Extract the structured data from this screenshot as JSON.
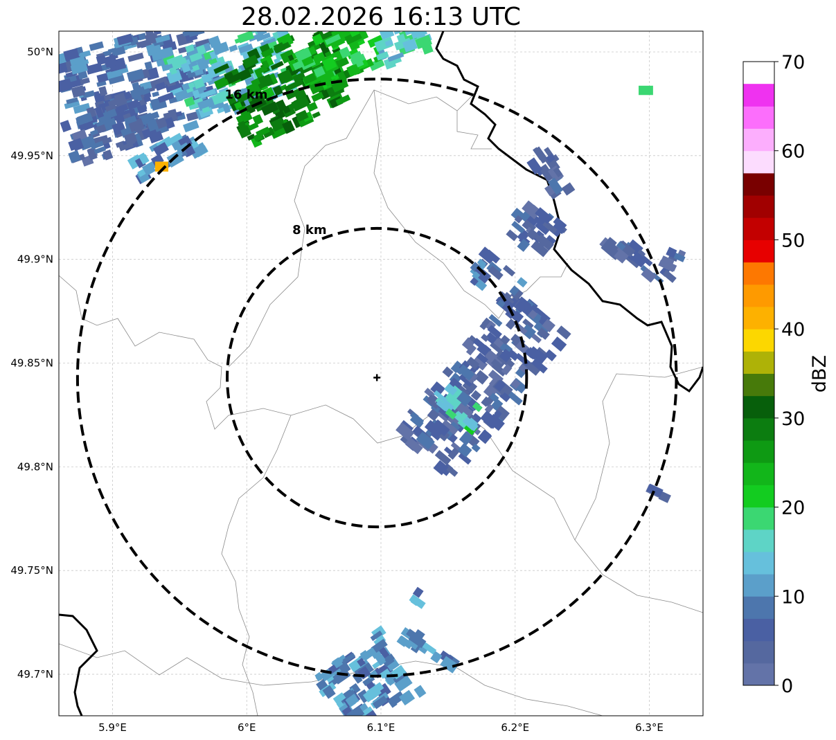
{
  "title": "28.02.2026 16:13 UTC",
  "map": {
    "lon_range": [
      5.86,
      6.34
    ],
    "lat_range": [
      49.68,
      50.01
    ],
    "radar_center": {
      "lon": 6.097,
      "lat": 49.843
    },
    "rings": [
      {
        "label": "8 km",
        "radius_km": 8
      },
      {
        "label": "16 km",
        "radius_km": 16
      }
    ],
    "lon_ticks": [
      {
        "value": 5.9,
        "label": "5.9°E"
      },
      {
        "value": 6.0,
        "label": "6°E"
      },
      {
        "value": 6.1,
        "label": "6.1°E"
      },
      {
        "value": 6.2,
        "label": "6.2°E"
      },
      {
        "value": 6.3,
        "label": "6.3°E"
      }
    ],
    "lat_ticks": [
      {
        "value": 50.0,
        "label": "50°N"
      },
      {
        "value": 49.95,
        "label": "49.95°N"
      },
      {
        "value": 49.9,
        "label": "49.9°N"
      },
      {
        "value": 49.85,
        "label": "49.85°N"
      },
      {
        "value": 49.8,
        "label": "49.8°N"
      },
      {
        "value": 49.75,
        "label": "49.75°N"
      },
      {
        "value": 49.7,
        "label": "49.7°N"
      }
    ],
    "gridlines": true
  },
  "colorbar": {
    "label": "dBZ",
    "ticks": [
      "0",
      "10",
      "20",
      "30",
      "40",
      "50",
      "60",
      "70"
    ],
    "range": [
      0,
      70
    ],
    "step": 2.5,
    "colors": [
      "#6373a8",
      "#55689f",
      "#4a60a3",
      "#4d76ad",
      "#5b9fca",
      "#66c0dc",
      "#5ed4c6",
      "#3bd772",
      "#13cc20",
      "#12b61a",
      "#0e9a13",
      "#0c7d10",
      "#075f0b",
      "#477a0a",
      "#aeb207",
      "#fcd700",
      "#fdb100",
      "#fe9a00",
      "#fd7801",
      "#e70000",
      "#c30000",
      "#a10000",
      "#790000",
      "#fcdcfe",
      "#fcaefd",
      "#fc6efc",
      "#ef32f0"
    ]
  },
  "echoes": [
    {
      "name": "north-west-band",
      "lon": 5.92,
      "lat": 49.985,
      "w": 0.11,
      "h": 0.045,
      "dbz": 8,
      "rot": -15
    },
    {
      "name": "north-west-band-2",
      "lon": 5.99,
      "lat": 49.99,
      "w": 0.09,
      "h": 0.035,
      "dbz": 14,
      "rot": -20
    },
    {
      "name": "north-band-green",
      "lon": 6.03,
      "lat": 49.985,
      "w": 0.09,
      "h": 0.04,
      "dbz": 28,
      "rot": -25
    },
    {
      "name": "north-band-green-2",
      "lon": 6.07,
      "lat": 49.998,
      "w": 0.06,
      "h": 0.025,
      "dbz": 22,
      "rot": -25
    },
    {
      "name": "north-west-lower",
      "lon": 5.905,
      "lat": 49.965,
      "w": 0.08,
      "h": 0.025,
      "dbz": 6,
      "rot": -20
    },
    {
      "name": "north-west-tail",
      "lon": 5.94,
      "lat": 49.95,
      "w": 0.05,
      "h": 0.015,
      "dbz": 10,
      "rot": -30
    },
    {
      "name": "north-west-core",
      "lon": 5.935,
      "lat": 49.945,
      "w": 0.006,
      "h": 0.006,
      "dbz": 40,
      "rot": 0
    },
    {
      "name": "north-edge",
      "lon": 6.115,
      "lat": 50.004,
      "w": 0.04,
      "h": 0.015,
      "dbz": 16,
      "rot": -20
    },
    {
      "name": "east-cluster",
      "lon": 6.175,
      "lat": 49.84,
      "w": 0.055,
      "h": 0.09,
      "dbz": 5,
      "rot": 40
    },
    {
      "name": "east-cluster-cyan",
      "lon": 6.16,
      "lat": 49.83,
      "w": 0.035,
      "h": 0.014,
      "dbz": 17,
      "rot": 40
    },
    {
      "name": "northeast-cells",
      "lon": 6.215,
      "lat": 49.915,
      "w": 0.035,
      "h": 0.02,
      "dbz": 6,
      "rot": 40
    },
    {
      "name": "northeast-cells-2",
      "lon": 6.185,
      "lat": 49.89,
      "w": 0.035,
      "h": 0.016,
      "dbz": 8,
      "rot": 40
    },
    {
      "name": "northeast-streak",
      "lon": 6.225,
      "lat": 49.943,
      "w": 0.04,
      "h": 0.01,
      "dbz": 5,
      "rot": 55
    },
    {
      "name": "far-east-streak",
      "lon": 6.29,
      "lat": 49.9,
      "w": 0.055,
      "h": 0.01,
      "dbz": 5,
      "rot": 40
    },
    {
      "name": "far-east-dot",
      "lon": 6.323,
      "lat": 49.898,
      "w": 0.02,
      "h": 0.008,
      "dbz": 5,
      "rot": 25
    },
    {
      "name": "east-lone",
      "lon": 6.305,
      "lat": 49.787,
      "w": 0.02,
      "h": 0.004,
      "dbz": 4,
      "rot": 25
    },
    {
      "name": "tiny-dot",
      "lon": 6.298,
      "lat": 49.98,
      "w": 0.005,
      "h": 0.004,
      "dbz": 14,
      "rot": 0
    },
    {
      "name": "south-cluster",
      "lon": 6.09,
      "lat": 49.695,
      "w": 0.06,
      "h": 0.035,
      "dbz": 10,
      "rot": -35
    },
    {
      "name": "south-cluster-2",
      "lon": 6.135,
      "lat": 49.712,
      "w": 0.045,
      "h": 0.008,
      "dbz": 9,
      "rot": 35
    },
    {
      "name": "south-dot",
      "lon": 6.125,
      "lat": 49.739,
      "w": 0.012,
      "h": 0.006,
      "dbz": 10,
      "rot": 35
    }
  ]
}
